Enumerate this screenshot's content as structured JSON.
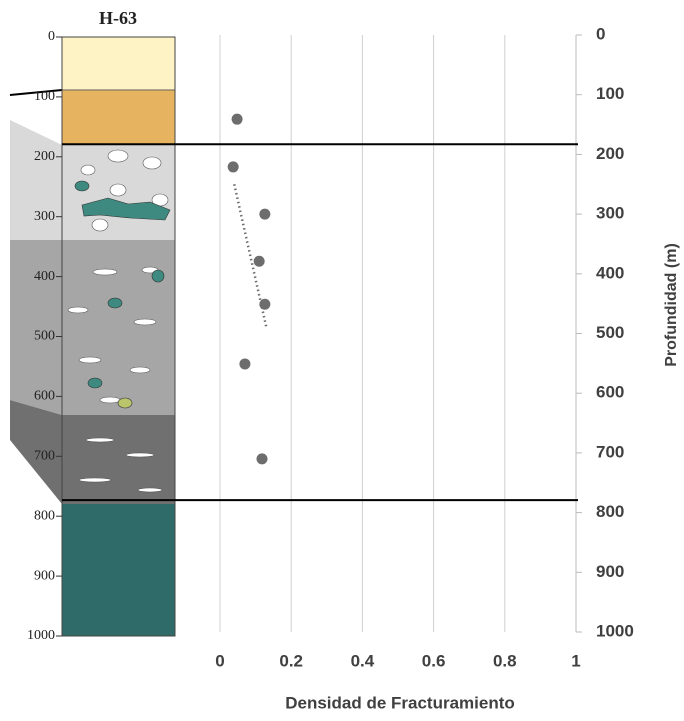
{
  "chart_data": {
    "type": "scatter",
    "x_label": "Densidad de Fracturamiento",
    "y_label": "Profundidad (m)",
    "x": [
      0.048,
      0.037,
      0.126,
      0.11,
      0.126,
      0.07,
      0.118
    ],
    "values": [
      141,
      221,
      300,
      379,
      451,
      551,
      710
    ],
    "color": "#6d6d6d",
    "trendline": {
      "x": [
        0.04,
        0.13
      ],
      "values": [
        250,
        489
      ],
      "color": "#6d6d6d"
    },
    "reference_lines": [
      183,
      779
    ],
    "xlim": [
      0,
      1
    ],
    "xticks": [
      0,
      0.2,
      0.4,
      0.6,
      0.8,
      1
    ],
    "ylim": [
      0,
      1000
    ],
    "yticks": [
      0,
      100,
      200,
      300,
      400,
      500,
      600,
      700,
      800,
      900,
      1000
    ],
    "y_inverted": true,
    "grid": true,
    "column": {
      "title": "H-63",
      "ylim": [
        0,
        1000
      ],
      "yticks": [
        0,
        100,
        200,
        300,
        400,
        500,
        600,
        700,
        800,
        900,
        1000
      ]
    }
  }
}
